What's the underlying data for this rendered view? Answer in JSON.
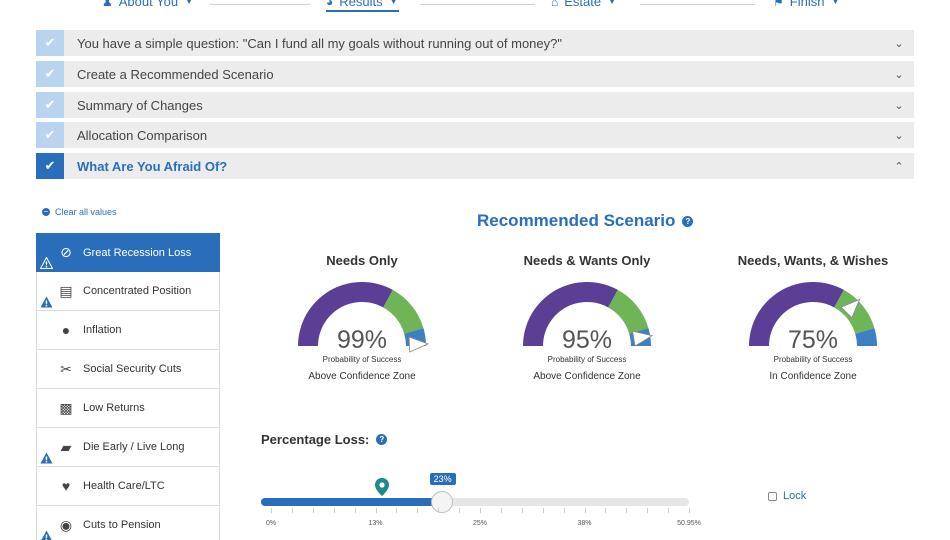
{
  "nav": {
    "items": [
      {
        "label": "About You",
        "icon": "user-icon"
      },
      {
        "label": "Results",
        "icon": "gauge-icon"
      },
      {
        "label": "Estate",
        "icon": "house-icon"
      },
      {
        "label": "Finish",
        "icon": "flag-icon"
      }
    ]
  },
  "accordion": [
    {
      "label": "You have a simple question: \"Can I fund all my goals without running out of money?\"",
      "open": false
    },
    {
      "label": "Create a Recommended Scenario",
      "open": false
    },
    {
      "label": "Summary of Changes",
      "open": false
    },
    {
      "label": "Allocation Comparison",
      "open": false
    },
    {
      "label": "What Are You Afraid Of?",
      "open": true
    }
  ],
  "clear_values": "Clear all values",
  "fears": [
    {
      "label": "Great Recession Loss",
      "icon": "no-dollar-icon",
      "warning": true,
      "selected": true
    },
    {
      "label": "Concentrated Position",
      "icon": "money-stack-icon",
      "warning": true
    },
    {
      "label": "Inflation",
      "icon": "money-bag-icon",
      "warning": false
    },
    {
      "label": "Social Security Cuts",
      "icon": "scissors-icon",
      "warning": false
    },
    {
      "label": "Low Returns",
      "icon": "low-bars-icon",
      "warning": false
    },
    {
      "label": "Die Early / Live Long",
      "icon": "tombstone-icon",
      "warning": true
    },
    {
      "label": "Health Care/LTC",
      "icon": "heart-pulse-icon",
      "warning": false
    },
    {
      "label": "Cuts to Pension",
      "icon": "piggy-bank-icon",
      "warning": true
    }
  ],
  "scenario_title": "Recommended Scenario",
  "gauges": [
    {
      "title": "Needs Only",
      "percent": "99%",
      "value": 99,
      "caption": "Probability of Success",
      "zone": "Above Confidence Zone"
    },
    {
      "title": "Needs & Wants Only",
      "percent": "95%",
      "value": 95,
      "caption": "Probability of Success",
      "zone": "Above Confidence Zone"
    },
    {
      "title": "Needs, Wants, & Wishes",
      "percent": "75%",
      "value": 75,
      "caption": "Probability of Success",
      "zone": "In Confidence Zone"
    }
  ],
  "gauge_colors": {
    "purple": "#5b3e96",
    "green": "#6fb557",
    "blue": "#3d7fc4",
    "grey": "#cfcfcf"
  },
  "percentage_loss": {
    "label": "Percentage Loss:",
    "value_label": "23%",
    "value": 23,
    "min": 0,
    "max": 50.95,
    "marker_value": 15,
    "tick_labels": [
      "0%",
      "13%",
      "25%",
      "38%",
      "50.95%"
    ],
    "tick_values": [
      0,
      12.7375,
      25.475,
      38.2125,
      50.95
    ]
  },
  "lock_label": "Lock"
}
